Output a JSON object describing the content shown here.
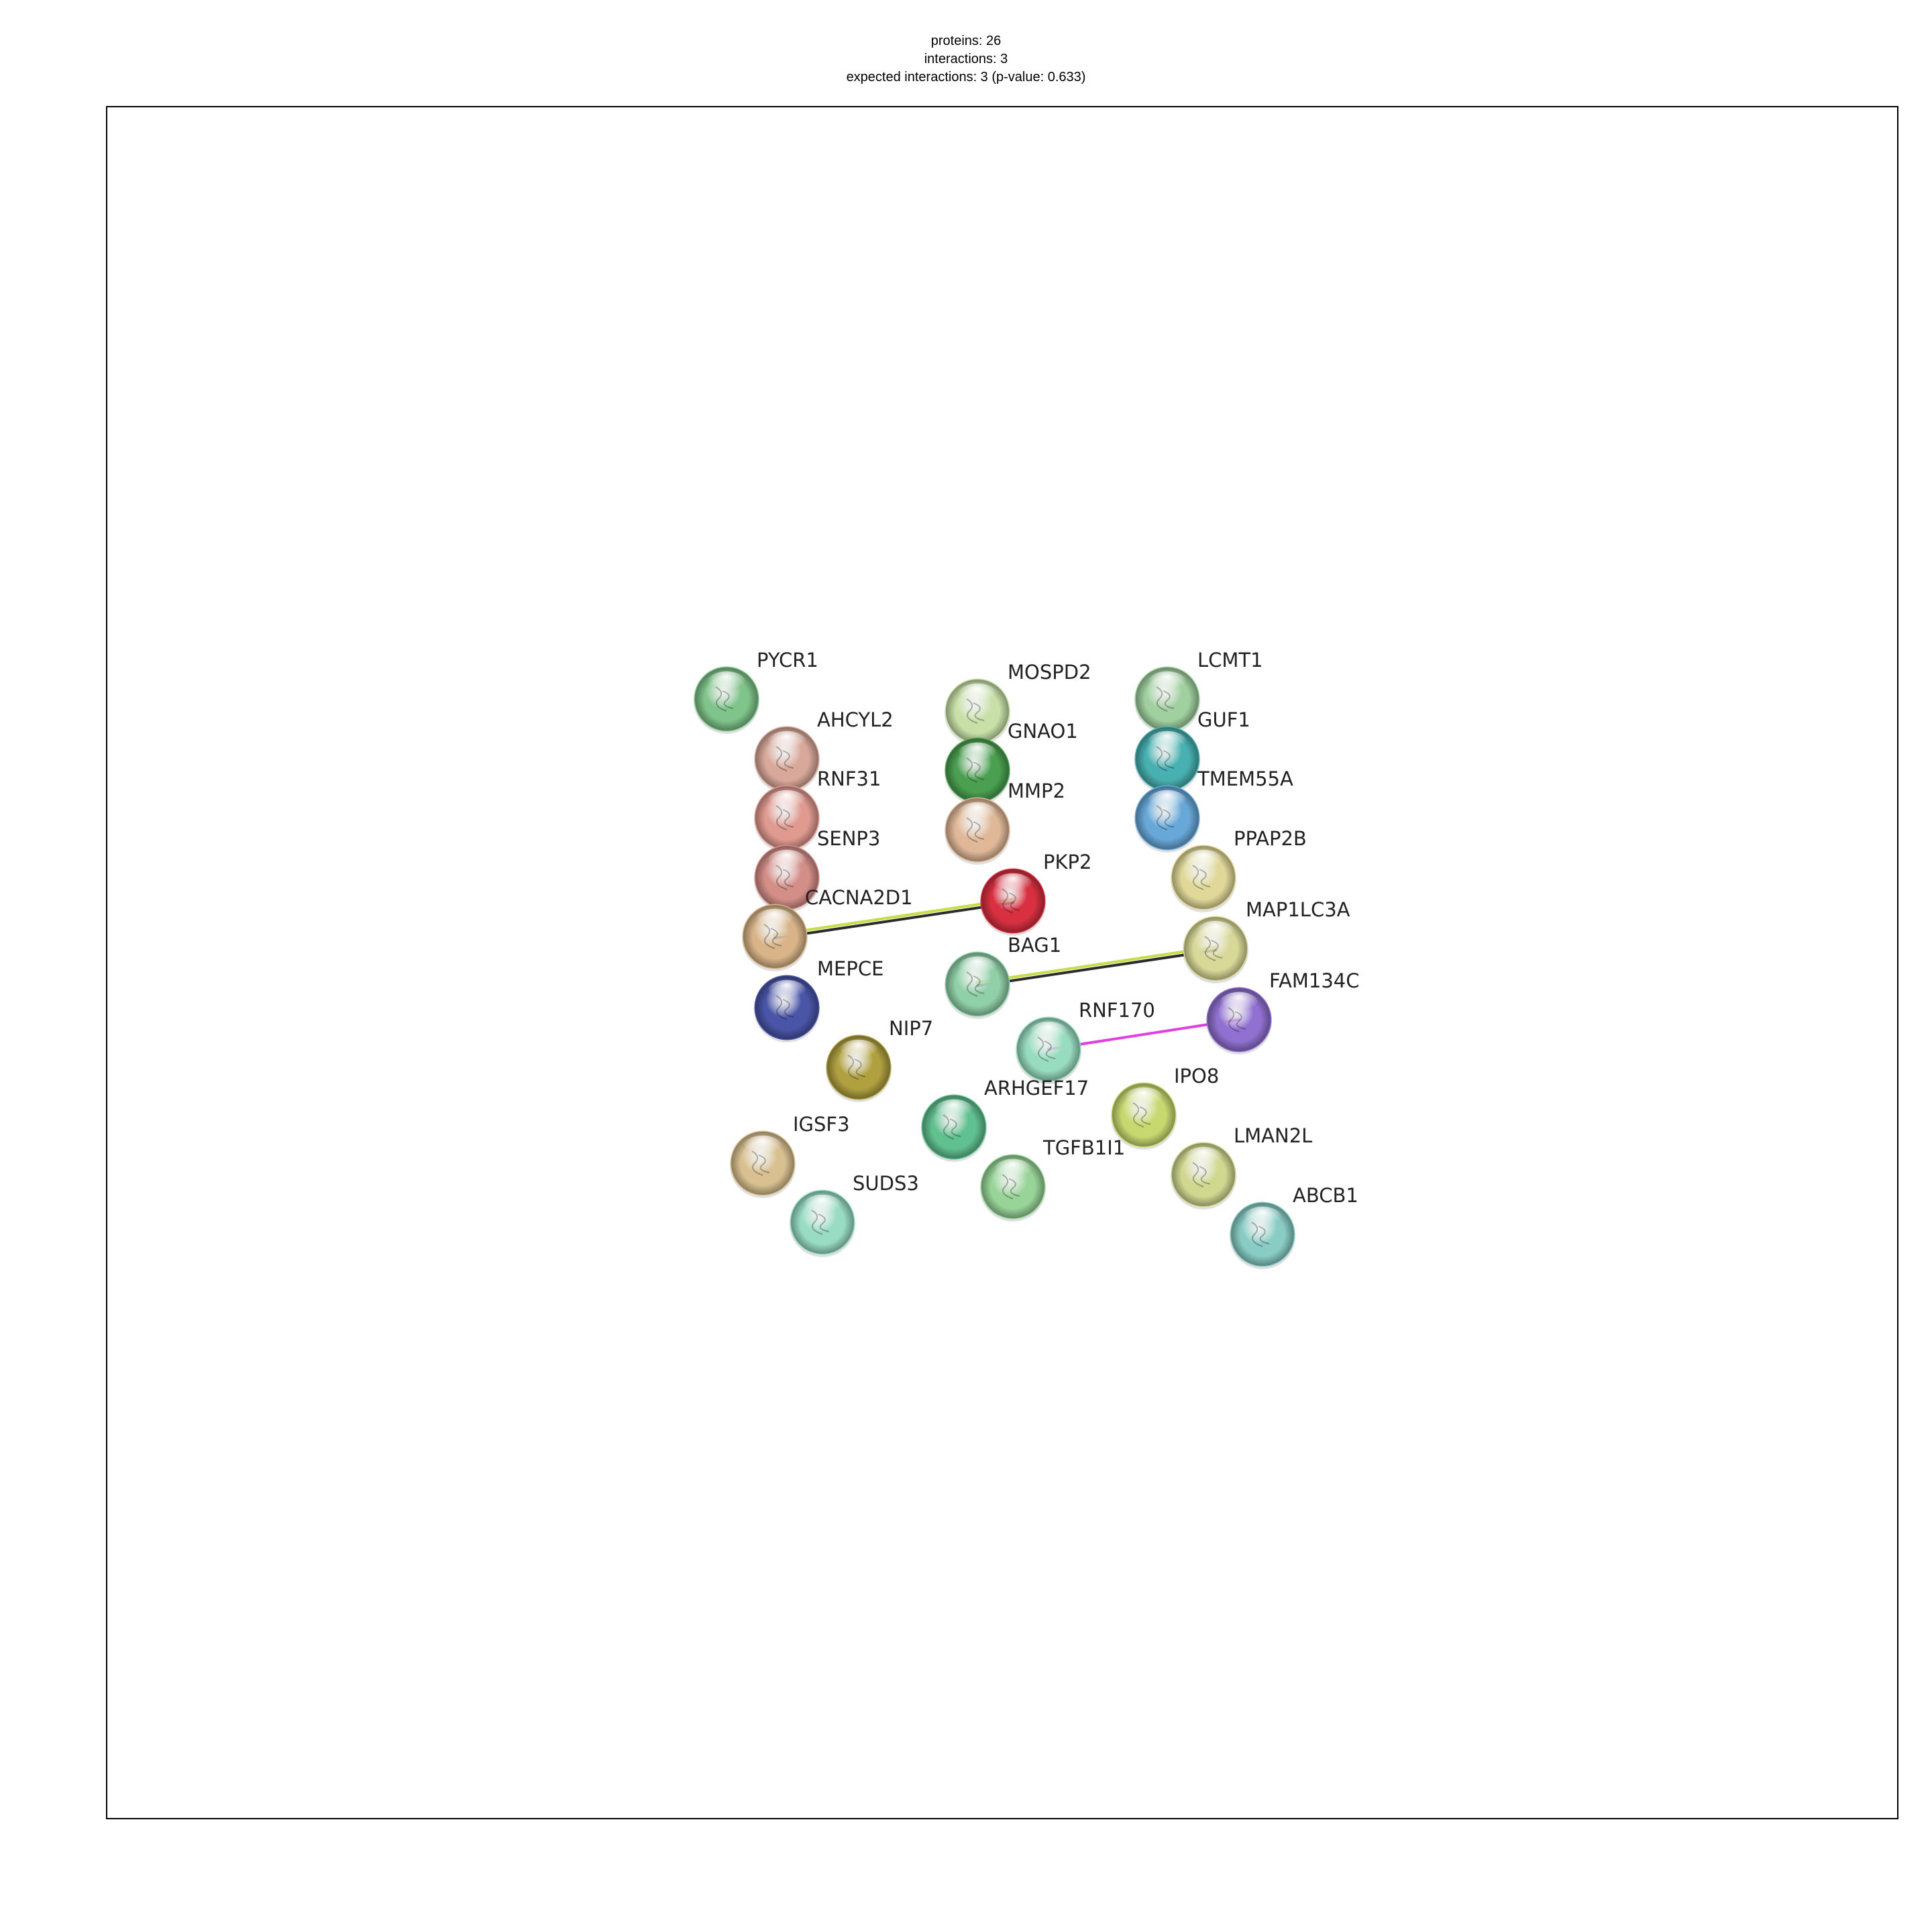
{
  "stats": {
    "proteins": "proteins: 26",
    "interactions": "interactions: 3",
    "expected": "expected interactions: 3 (p-value: 0.633)"
  },
  "nodes": [
    {
      "id": "PYCR1",
      "label": "PYCR1",
      "color": "#7fc48a"
    },
    {
      "id": "AHCYL2",
      "label": "AHCYL2",
      "color": "#d8a89a"
    },
    {
      "id": "RNF31",
      "label": "RNF31",
      "color": "#e09a90"
    },
    {
      "id": "SENP3",
      "label": "SENP3",
      "color": "#d48e88"
    },
    {
      "id": "CACNA2D1",
      "label": "CACNA2D1",
      "color": "#d8b488"
    },
    {
      "id": "MEPCE",
      "label": "MEPCE",
      "color": "#4a55a8"
    },
    {
      "id": "NIP7",
      "label": "NIP7",
      "color": "#b0a040"
    },
    {
      "id": "IGSF3",
      "label": "IGSF3",
      "color": "#d8c090"
    },
    {
      "id": "SUDS3",
      "label": "SUDS3",
      "color": "#98dcc4"
    },
    {
      "id": "MOSPD2",
      "label": "MOSPD2",
      "color": "#c8e0a8"
    },
    {
      "id": "GNAO1",
      "label": "GNAO1",
      "color": "#4aa050"
    },
    {
      "id": "MMP2",
      "label": "MMP2",
      "color": "#e0b898"
    },
    {
      "id": "PKP2",
      "label": "PKP2",
      "color": "#d83040"
    },
    {
      "id": "BAG1",
      "label": "BAG1",
      "color": "#90d0a8"
    },
    {
      "id": "RNF170",
      "label": "RNF170",
      "color": "#98dcc0"
    },
    {
      "id": "ARHGEF17",
      "label": "ARHGEF17",
      "color": "#60c090"
    },
    {
      "id": "TGFB1I1",
      "label": "TGFB1I1",
      "color": "#98d498"
    },
    {
      "id": "LCMT1",
      "label": "LCMT1",
      "color": "#a0d0a0"
    },
    {
      "id": "GUF1",
      "label": "GUF1",
      "color": "#48b0b0"
    },
    {
      "id": "TMEM55A",
      "label": "TMEM55A",
      "color": "#68a8d8"
    },
    {
      "id": "PPAP2B",
      "label": "PPAP2B",
      "color": "#e0d898"
    },
    {
      "id": "MAP1LC3A",
      "label": "MAP1LC3A",
      "color": "#d8d898"
    },
    {
      "id": "FAM134C",
      "label": "FAM134C",
      "color": "#9070d0"
    },
    {
      "id": "IPO8",
      "label": "IPO8",
      "color": "#c8d870"
    },
    {
      "id": "LMAN2L",
      "label": "LMAN2L",
      "color": "#d0d890"
    },
    {
      "id": "ABCB1",
      "label": "ABCB1",
      "color": "#88ccc4"
    }
  ],
  "edges": [
    {
      "source": "CACNA2D1",
      "target": "PKP2",
      "colors": [
        "#c8dc48",
        "#2c2c2c"
      ]
    },
    {
      "source": "BAG1",
      "target": "MAP1LC3A",
      "colors": [
        "#c8dc48",
        "#2c2c2c"
      ]
    },
    {
      "source": "RNF170",
      "target": "FAM134C",
      "colors": [
        "#e040e0"
      ]
    }
  ]
}
